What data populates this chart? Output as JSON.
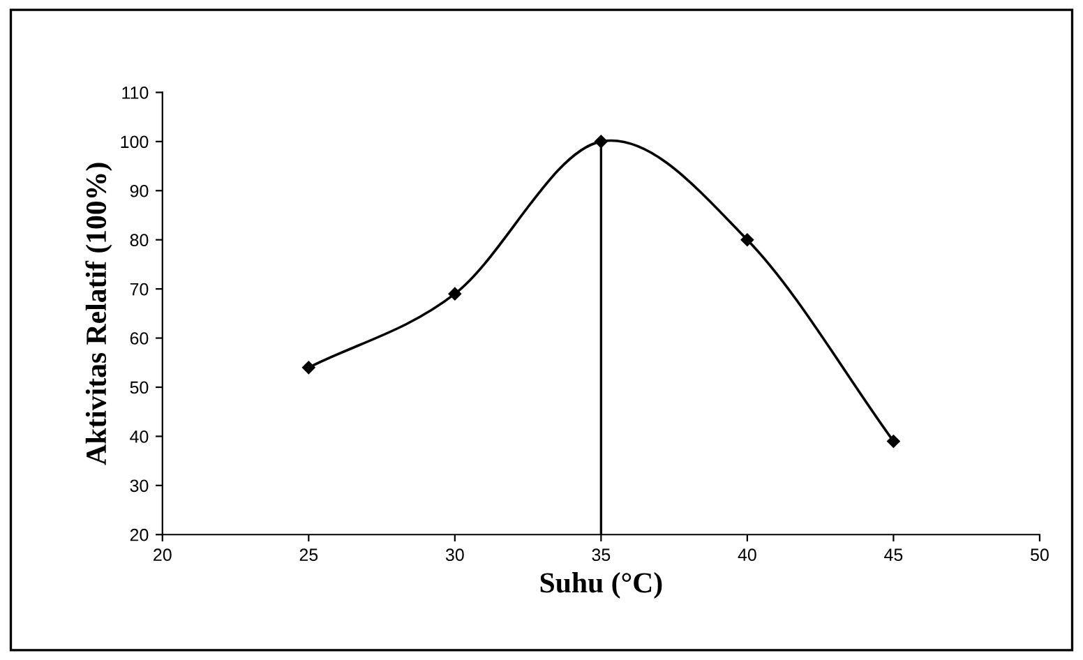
{
  "chart_data": {
    "type": "line",
    "xlabel": "Suhu (°C)",
    "ylabel": "Aktivitas Relatif (100%)",
    "x": [
      25,
      30,
      35,
      40,
      45
    ],
    "series": [
      {
        "color": "#000000",
        "values": [
          54,
          69,
          100,
          80,
          39
        ]
      }
    ],
    "xlim": [
      20,
      50
    ],
    "xticks": [
      20,
      25,
      30,
      35,
      40,
      45,
      50
    ],
    "ylim": [
      20,
      110
    ],
    "yticks": [
      20,
      30,
      40,
      50,
      60,
      70,
      80,
      90,
      100,
      110
    ],
    "ref_lines": [
      {
        "axis": "x",
        "value": 35,
        "color": "#000000"
      }
    ],
    "marker": "diamond",
    "line_style": "solid",
    "grid": false,
    "legend": false
  }
}
